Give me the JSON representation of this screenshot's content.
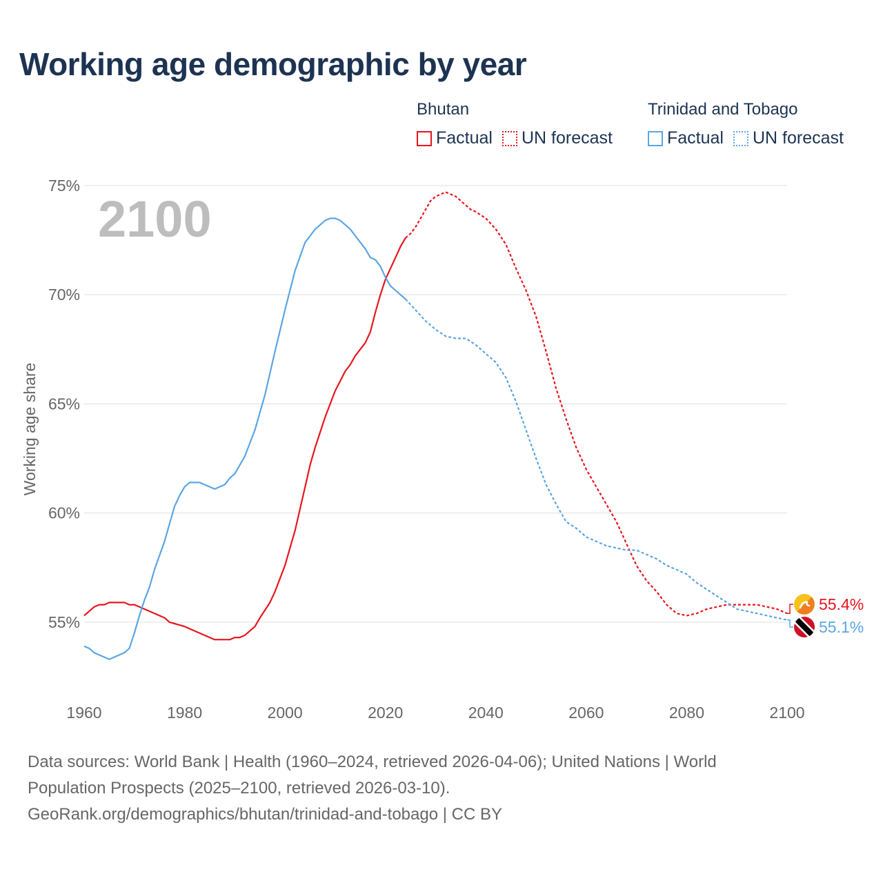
{
  "title": "Working age demographic by year",
  "legend": {
    "groups": [
      {
        "name": "Bhutan",
        "factual_label": "Factual",
        "forecast_label": "UN forecast",
        "color": "#e8141c"
      },
      {
        "name": "Trinidad and Tobago",
        "factual_label": "Factual",
        "forecast_label": "UN forecast",
        "color": "#5aa5e4"
      }
    ]
  },
  "year_watermark": "2100",
  "sources": {
    "line1": "Data sources: World Bank | Health (1960–2024, retrieved 2026-04-06); United Nations | World",
    "line2": "Population Prospects (2025–2100, retrieved 2026-03-10).",
    "line3": "GeoRank.org/demographics/bhutan/trinidad-and-tobago | CC BY"
  },
  "chart_data": {
    "type": "line",
    "title": "Working age demographic by year",
    "xlabel": "",
    "ylabel": "Working age share",
    "xlim": [
      1960,
      2100
    ],
    "ylim": [
      51.9,
      75.6
    ],
    "x_ticks": [
      1960,
      1980,
      2000,
      2020,
      2040,
      2060,
      2080,
      2100
    ],
    "y_ticks": [
      55,
      60,
      65,
      70,
      75
    ],
    "y_tick_labels": [
      "55%",
      "60%",
      "65%",
      "70%",
      "75%"
    ],
    "factual_end_year": 2024,
    "series": [
      {
        "name": "Bhutan",
        "color": "#e8141c",
        "end_label": "55.4%",
        "flag_icon": "bhutan-flag-icon",
        "points": [
          [
            1960,
            55.3
          ],
          [
            1962,
            55.7
          ],
          [
            1963,
            55.8
          ],
          [
            1964,
            55.8
          ],
          [
            1965,
            55.9
          ],
          [
            1966,
            55.9
          ],
          [
            1968,
            55.9
          ],
          [
            1969,
            55.8
          ],
          [
            1970,
            55.8
          ],
          [
            1972,
            55.6
          ],
          [
            1974,
            55.4
          ],
          [
            1976,
            55.2
          ],
          [
            1977,
            55.0
          ],
          [
            1980,
            54.8
          ],
          [
            1983,
            54.5
          ],
          [
            1985,
            54.3
          ],
          [
            1986,
            54.2
          ],
          [
            1989,
            54.2
          ],
          [
            1990,
            54.3
          ],
          [
            1991,
            54.3
          ],
          [
            1992,
            54.4
          ],
          [
            1993,
            54.6
          ],
          [
            1994,
            54.8
          ],
          [
            1995,
            55.2
          ],
          [
            1997,
            55.9
          ],
          [
            1998,
            56.4
          ],
          [
            2000,
            57.6
          ],
          [
            2002,
            59.2
          ],
          [
            2004,
            61.2
          ],
          [
            2005,
            62.2
          ],
          [
            2006,
            63.0
          ],
          [
            2008,
            64.4
          ],
          [
            2010,
            65.6
          ],
          [
            2012,
            66.5
          ],
          [
            2013,
            66.8
          ],
          [
            2014,
            67.2
          ],
          [
            2015,
            67.5
          ],
          [
            2016,
            67.8
          ],
          [
            2017,
            68.3
          ],
          [
            2018,
            69.2
          ],
          [
            2019,
            70.0
          ],
          [
            2020,
            70.7
          ],
          [
            2021,
            71.2
          ],
          [
            2022,
            71.7
          ],
          [
            2023,
            72.2
          ],
          [
            2024,
            72.6
          ],
          [
            2025,
            72.8
          ],
          [
            2026,
            73.1
          ],
          [
            2027,
            73.5
          ],
          [
            2028,
            73.9
          ],
          [
            2029,
            74.3
          ],
          [
            2030,
            74.5
          ],
          [
            2031,
            74.6
          ],
          [
            2032,
            74.7
          ],
          [
            2033,
            74.6
          ],
          [
            2034,
            74.5
          ],
          [
            2035,
            74.3
          ],
          [
            2036,
            74.1
          ],
          [
            2037,
            73.9
          ],
          [
            2038,
            73.8
          ],
          [
            2040,
            73.5
          ],
          [
            2042,
            73.0
          ],
          [
            2044,
            72.3
          ],
          [
            2046,
            71.2
          ],
          [
            2048,
            70.2
          ],
          [
            2050,
            69.0
          ],
          [
            2052,
            67.4
          ],
          [
            2054,
            65.7
          ],
          [
            2056,
            64.3
          ],
          [
            2058,
            63.0
          ],
          [
            2060,
            62.0
          ],
          [
            2062,
            61.2
          ],
          [
            2064,
            60.4
          ],
          [
            2066,
            59.6
          ],
          [
            2068,
            58.6
          ],
          [
            2070,
            57.6
          ],
          [
            2072,
            56.9
          ],
          [
            2074,
            56.4
          ],
          [
            2076,
            55.8
          ],
          [
            2078,
            55.4
          ],
          [
            2080,
            55.3
          ],
          [
            2082,
            55.4
          ],
          [
            2084,
            55.6
          ],
          [
            2086,
            55.7
          ],
          [
            2088,
            55.8
          ],
          [
            2090,
            55.8
          ],
          [
            2094,
            55.8
          ],
          [
            2096,
            55.7
          ],
          [
            2098,
            55.6
          ],
          [
            2100,
            55.4
          ]
        ]
      },
      {
        "name": "Trinidad and Tobago",
        "color": "#5aa5e4",
        "end_label": "55.1%",
        "flag_icon": "trinidad-and-tobago-flag-icon",
        "points": [
          [
            1960,
            53.9
          ],
          [
            1961,
            53.8
          ],
          [
            1962,
            53.6
          ],
          [
            1963,
            53.5
          ],
          [
            1965,
            53.3
          ],
          [
            1967,
            53.5
          ],
          [
            1968,
            53.6
          ],
          [
            1969,
            53.8
          ],
          [
            1970,
            54.5
          ],
          [
            1971,
            55.3
          ],
          [
            1972,
            56.0
          ],
          [
            1973,
            56.6
          ],
          [
            1974,
            57.4
          ],
          [
            1976,
            58.7
          ],
          [
            1977,
            59.5
          ],
          [
            1978,
            60.3
          ],
          [
            1979,
            60.8
          ],
          [
            1980,
            61.2
          ],
          [
            1981,
            61.4
          ],
          [
            1983,
            61.4
          ],
          [
            1985,
            61.2
          ],
          [
            1986,
            61.1
          ],
          [
            1988,
            61.3
          ],
          [
            1989,
            61.6
          ],
          [
            1990,
            61.8
          ],
          [
            1992,
            62.6
          ],
          [
            1994,
            63.8
          ],
          [
            1996,
            65.4
          ],
          [
            1998,
            67.4
          ],
          [
            2000,
            69.3
          ],
          [
            2002,
            71.1
          ],
          [
            2004,
            72.4
          ],
          [
            2006,
            73.0
          ],
          [
            2008,
            73.4
          ],
          [
            2009,
            73.5
          ],
          [
            2010,
            73.5
          ],
          [
            2011,
            73.4
          ],
          [
            2013,
            73.0
          ],
          [
            2015,
            72.4
          ],
          [
            2016,
            72.1
          ],
          [
            2017,
            71.7
          ],
          [
            2018,
            71.6
          ],
          [
            2019,
            71.3
          ],
          [
            2020,
            70.8
          ],
          [
            2021,
            70.4
          ],
          [
            2023,
            70.0
          ],
          [
            2024,
            69.8
          ],
          [
            2026,
            69.3
          ],
          [
            2028,
            68.8
          ],
          [
            2030,
            68.4
          ],
          [
            2032,
            68.1
          ],
          [
            2034,
            68.0
          ],
          [
            2036,
            68.0
          ],
          [
            2038,
            67.7
          ],
          [
            2040,
            67.3
          ],
          [
            2042,
            66.9
          ],
          [
            2044,
            66.2
          ],
          [
            2046,
            65.1
          ],
          [
            2048,
            63.8
          ],
          [
            2050,
            62.5
          ],
          [
            2052,
            61.3
          ],
          [
            2054,
            60.4
          ],
          [
            2056,
            59.6
          ],
          [
            2058,
            59.3
          ],
          [
            2060,
            58.9
          ],
          [
            2062,
            58.7
          ],
          [
            2064,
            58.5
          ],
          [
            2066,
            58.4
          ],
          [
            2068,
            58.3
          ],
          [
            2070,
            58.3
          ],
          [
            2072,
            58.1
          ],
          [
            2074,
            57.9
          ],
          [
            2076,
            57.6
          ],
          [
            2078,
            57.4
          ],
          [
            2080,
            57.2
          ],
          [
            2082,
            56.8
          ],
          [
            2084,
            56.5
          ],
          [
            2086,
            56.2
          ],
          [
            2088,
            55.9
          ],
          [
            2090,
            55.6
          ],
          [
            2092,
            55.5
          ],
          [
            2094,
            55.4
          ],
          [
            2096,
            55.3
          ],
          [
            2098,
            55.2
          ],
          [
            2100,
            55.1
          ]
        ]
      }
    ]
  }
}
